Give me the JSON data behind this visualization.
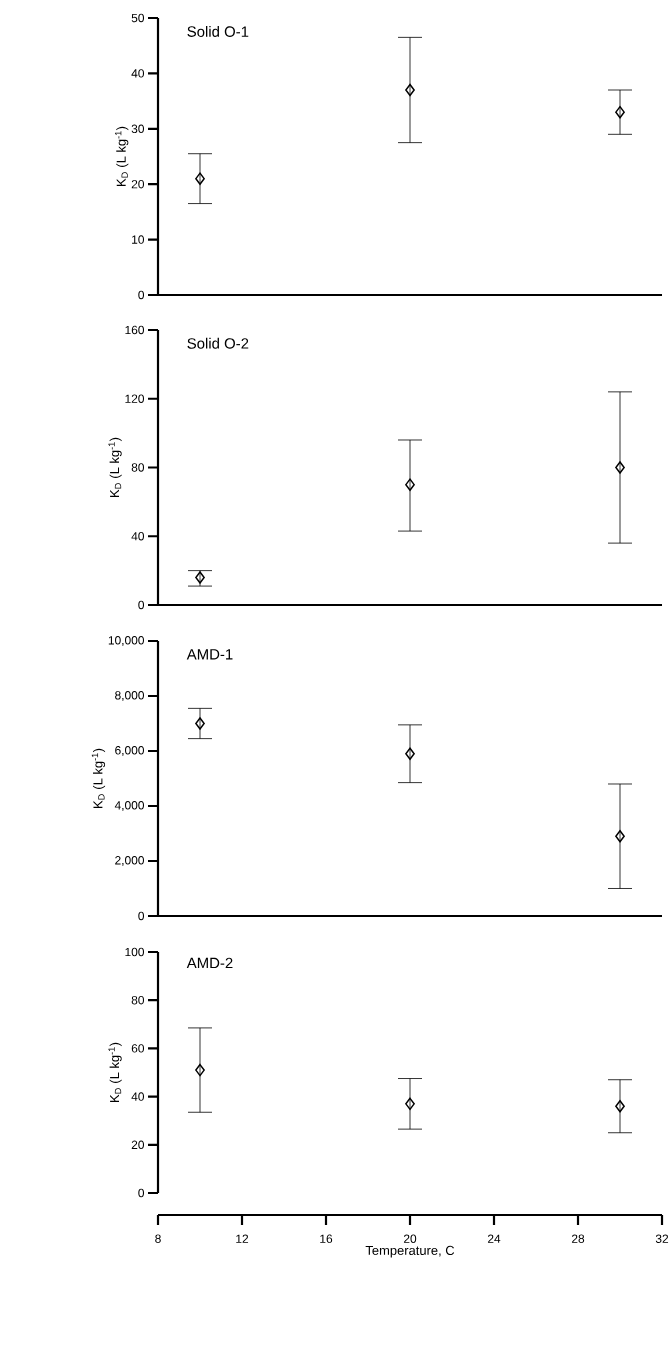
{
  "chart_data": [
    {
      "type": "scatter",
      "title": "Solid O-1",
      "ylabel": "K$_{D}$ (L kg$^{-1}$)",
      "x": [
        10,
        20,
        30
      ],
      "values": [
        21,
        37,
        33
      ],
      "errors": [
        [
          16.5,
          25.5
        ],
        [
          27.5,
          46.5
        ],
        [
          29,
          37
        ]
      ],
      "color": "#000000",
      "marker": "diamond",
      "xlim": [
        8,
        32
      ],
      "ylim": [
        0,
        50
      ],
      "yticks": [
        0,
        10,
        20,
        30,
        40,
        50
      ],
      "tick_labels": "y"
    },
    {
      "type": "scatter",
      "title": "Solid O-2",
      "ylabel": "K$_{D}$ (L kg$^{-1}$)",
      "x": [
        10,
        20,
        30
      ],
      "values": [
        16,
        70,
        80
      ],
      "errors": [
        [
          11,
          20
        ],
        [
          43,
          96
        ],
        [
          36,
          124
        ]
      ],
      "color": "#000000",
      "marker": "diamond",
      "xlim": [
        8,
        32
      ],
      "ylim": [
        0,
        160
      ],
      "yticks": [
        0,
        40,
        80,
        120,
        160
      ],
      "tick_labels": "y"
    },
    {
      "type": "scatter",
      "title": "AMD-1",
      "ylabel": "K$_{D}$ (L kg$^{-1}$)",
      "x": [
        10,
        20,
        30
      ],
      "values": [
        7000,
        5900,
        2900
      ],
      "errors": [
        [
          6450,
          7550
        ],
        [
          4850,
          6950
        ],
        [
          1000,
          4800
        ]
      ],
      "color": "#000000",
      "marker": "diamond",
      "xlim": [
        8,
        32
      ],
      "ylim": [
        0,
        10000
      ],
      "yticks": [
        0,
        {
          "value": 2000,
          "label": "2,000"
        },
        {
          "value": 4000,
          "label": "4,000"
        },
        {
          "value": 6000,
          "label": "6,000"
        },
        {
          "value": 8000,
          "label": "8,000"
        },
        {
          "value": 10000,
          "label": "10,000"
        }
      ],
      "tick_labels": "y"
    },
    {
      "type": "scatter",
      "title": "AMD-2",
      "ylabel": "K$_{D}$ (L kg$^{-1}$)",
      "xlabel": "Temperature, C",
      "x": [
        10,
        20,
        30
      ],
      "values": [
        51,
        37,
        36
      ],
      "errors": [
        [
          33.5,
          68.5
        ],
        [
          26.5,
          47.5
        ],
        [
          25,
          47
        ]
      ],
      "color": "#000000",
      "marker": "diamond",
      "xlim": [
        8,
        32
      ],
      "xticks": [
        8,
        12,
        16,
        20,
        24,
        28,
        32
      ],
      "ylim": [
        0,
        100
      ],
      "yticks": [
        0,
        20,
        40,
        60,
        80,
        100
      ]
    }
  ]
}
